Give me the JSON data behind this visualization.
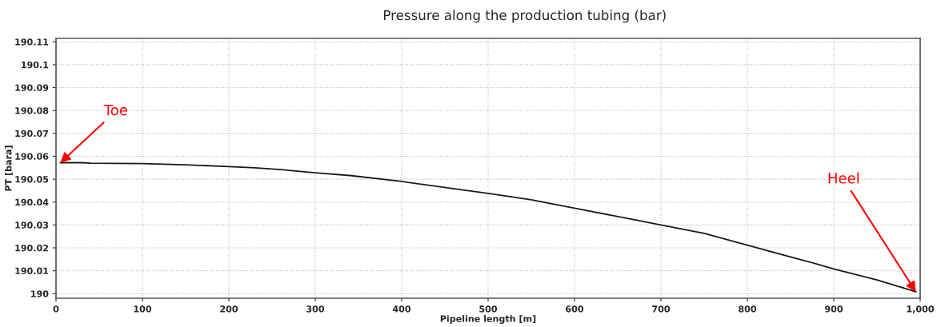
{
  "chart_data": {
    "type": "line",
    "title": "Pressure along the production tubing (bar)",
    "xlabel": "Pipeline length [m]",
    "ylabel": "PT [bara]",
    "series": [
      {
        "color": "#1a1a1a",
        "x": [
          5,
          30,
          40,
          100,
          150,
          200,
          230,
          260,
          300,
          340,
          400,
          500,
          550,
          600,
          660,
          700,
          750,
          800,
          850,
          880,
          900,
          950,
          995
        ],
        "values": [
          190.0572,
          190.0572,
          190.057,
          190.0568,
          190.0563,
          190.0555,
          190.055,
          190.0542,
          190.0528,
          190.0516,
          190.049,
          190.0438,
          190.041,
          190.0373,
          190.033,
          190.03,
          190.0263,
          190.0212,
          190.016,
          190.013,
          190.0108,
          190.006,
          190.0008
        ]
      }
    ],
    "xlim": [
      0,
      1000
    ],
    "xticks": [
      0,
      100,
      200,
      300,
      400,
      500,
      600,
      700,
      800,
      900,
      {
        "value": 1000,
        "label": "1,000"
      }
    ],
    "ylim": [
      189.998,
      190.1115
    ],
    "yticks": [
      190,
      190.01,
      190.02,
      190.03,
      190.04,
      190.05,
      190.06,
      190.07,
      190.08,
      190.09,
      190.1,
      190.11
    ],
    "grid": true,
    "marker": "none",
    "line_style": "solid",
    "annotations": [
      {
        "text": "Toe",
        "x": 5,
        "y": 190.0572
      },
      {
        "text": "Heel",
        "x": 995,
        "y": 190.0008
      }
    ]
  }
}
